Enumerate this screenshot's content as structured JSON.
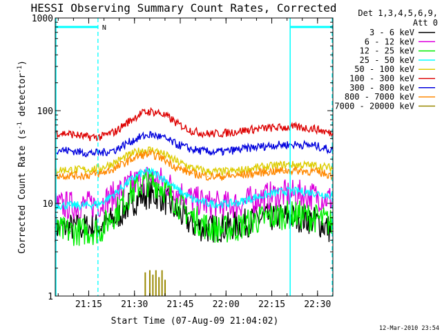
{
  "chart_data": {
    "type": "line",
    "title": "HESSI Observing Summary Count Rates, Corrected",
    "xlabel": "Start Time (07-Aug-09 21:04:02)",
    "ylabel": "Corrected Count Rate (s",
    "ylabel_sup": "-1",
    "ylabel_mid": " detector",
    "ylabel_sup2": "-1",
    "ylabel_end": ")",
    "y_scale": "log",
    "ylim": [
      1,
      1000
    ],
    "xlim_minutes": [
      0,
      91
    ],
    "x_ticks": [
      {
        "minute": 10.97,
        "label": "21:15"
      },
      {
        "minute": 25.97,
        "label": "21:30"
      },
      {
        "minute": 40.97,
        "label": "21:45"
      },
      {
        "minute": 55.97,
        "label": "22:00"
      },
      {
        "minute": 70.97,
        "label": "22:15"
      },
      {
        "minute": 85.97,
        "label": "22:30"
      }
    ],
    "y_tick_labels": [
      {
        "value": 1,
        "label": "1"
      },
      {
        "value": 10,
        "label": "10"
      },
      {
        "value": 100,
        "label": "100"
      },
      {
        "value": 1000,
        "label": "1000"
      }
    ],
    "legend_header": [
      "Det 1,3,4,5,6,9,",
      "Att 0"
    ],
    "legend_position": "right",
    "grid": false,
    "series": [
      {
        "name": "3 - 6 keV",
        "color": "#000000",
        "x": [
          0,
          5,
          10,
          15,
          20,
          25,
          28,
          31,
          34,
          37,
          40,
          45,
          50,
          55,
          60,
          65,
          70,
          75,
          80,
          85,
          91
        ],
        "y": [
          5.5,
          5.5,
          5.5,
          5.6,
          7,
          10,
          12,
          12.5,
          12,
          10,
          8,
          5.8,
          5.3,
          5.5,
          5.8,
          6.5,
          7,
          7.2,
          7,
          6.5,
          5
        ]
      },
      {
        "name": "6 - 12 keV",
        "color": "#dd00dd",
        "x": [
          0,
          5,
          10,
          15,
          20,
          25,
          28,
          31,
          34,
          37,
          40,
          45,
          50,
          55,
          60,
          65,
          70,
          75,
          80,
          85,
          91
        ],
        "y": [
          9.5,
          9.5,
          9.5,
          10,
          12.5,
          16,
          18,
          19,
          18,
          16,
          13.5,
          11,
          9.8,
          9.5,
          9.8,
          11,
          12,
          12.5,
          12.5,
          12,
          11
        ]
      },
      {
        "name": "12 - 25 keV",
        "color": "#00ee00",
        "x": [
          0,
          5,
          10,
          15,
          20,
          25,
          28,
          31,
          34,
          37,
          40,
          45,
          50,
          55,
          60,
          65,
          70,
          75,
          80,
          85,
          91
        ],
        "y": [
          5,
          5,
          5,
          5.2,
          8,
          13,
          16,
          17,
          16,
          13,
          10,
          7,
          5.5,
          5.2,
          5.5,
          6.5,
          7,
          7.5,
          7.5,
          7,
          6
        ]
      },
      {
        "name": "25 - 50 keV",
        "color": "#00ffff",
        "x": [
          0,
          5,
          10,
          15,
          20,
          25,
          28,
          31,
          34,
          37,
          40,
          45,
          50,
          55,
          60,
          65,
          70,
          75,
          80,
          85,
          91
        ],
        "y": [
          9.5,
          9.5,
          9.5,
          10,
          13,
          18,
          21,
          22,
          20,
          17,
          14,
          11,
          10,
          9.8,
          10.2,
          11.5,
          12.5,
          13.5,
          13.5,
          13,
          12
        ]
      },
      {
        "name": "50 - 100 keV",
        "color": "#ddcc00",
        "x": [
          0,
          5,
          10,
          15,
          20,
          25,
          28,
          31,
          34,
          37,
          40,
          45,
          50,
          55,
          60,
          65,
          70,
          75,
          80,
          85,
          91
        ],
        "y": [
          23,
          23,
          23,
          24,
          28,
          34,
          37,
          38,
          36,
          32,
          28,
          24,
          22,
          22,
          22.5,
          24,
          25,
          26,
          26,
          25.5,
          24
        ]
      },
      {
        "name": "100 - 300 keV",
        "color": "#dd0000",
        "x": [
          0,
          5,
          10,
          15,
          20,
          25,
          28,
          31,
          34,
          37,
          40,
          45,
          50,
          55,
          60,
          65,
          70,
          75,
          80,
          85,
          91
        ],
        "y": [
          58,
          56,
          52,
          52,
          60,
          80,
          93,
          98,
          95,
          85,
          72,
          60,
          56,
          57,
          60,
          63,
          65,
          66,
          66,
          64,
          56
        ]
      },
      {
        "name": "300 - 800 keV",
        "color": "#0000dd",
        "x": [
          0,
          5,
          10,
          15,
          20,
          25,
          28,
          31,
          34,
          37,
          40,
          45,
          50,
          55,
          60,
          65,
          70,
          75,
          80,
          85,
          91
        ],
        "y": [
          38,
          37,
          35,
          35,
          38,
          47,
          52,
          55,
          53,
          48,
          43,
          38,
          36,
          36,
          38,
          40,
          42,
          43,
          43,
          42,
          37
        ]
      },
      {
        "name": "800 - 7000 keV",
        "color": "#ff8800",
        "x": [
          0,
          5,
          10,
          15,
          20,
          25,
          28,
          31,
          34,
          37,
          40,
          45,
          50,
          55,
          60,
          65,
          70,
          75,
          80,
          85,
          91
        ],
        "y": [
          20,
          20,
          20,
          21,
          24,
          30,
          33,
          34,
          32,
          28,
          24,
          21,
          19.5,
          19.5,
          20,
          21,
          22,
          22.5,
          22.5,
          22,
          20
        ]
      },
      {
        "name": "7000 - 20000 keV",
        "color": "#998800",
        "x": [
          29.5,
          31,
          32,
          33,
          34,
          35,
          36
        ],
        "y": [
          1.8,
          1.9,
          1.7,
          1.9,
          1.6,
          1.9,
          1.5
        ]
      }
    ],
    "decorations": {
      "color": "#00ffff",
      "n_label": "N",
      "solid_lines_minutes": [
        0,
        77
      ],
      "dashed_lines_minutes": [
        14,
        91
      ],
      "bars_minutes": [
        [
          0,
          14
        ],
        [
          77,
          91
        ]
      ],
      "bar_value": 800
    }
  },
  "footer": {
    "timestamp": "12-Mar-2010 23:54"
  }
}
